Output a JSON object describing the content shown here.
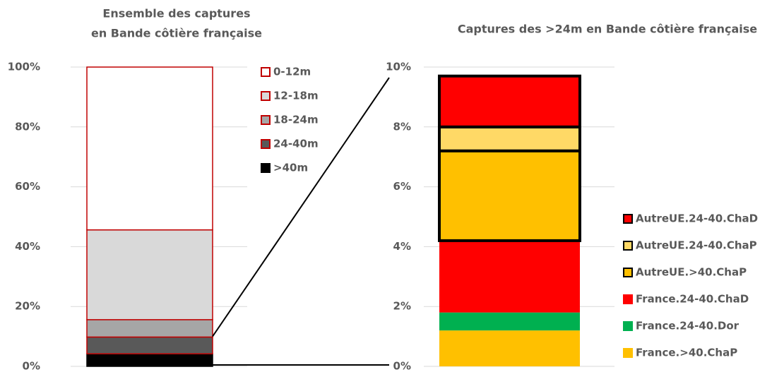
{
  "chart_data": [
    {
      "type": "stacked-bar",
      "title": [
        "Ensemble des captures",
        "en Bande côtière française"
      ],
      "series": [
        {
          "name": ">40m",
          "color": "#000000",
          "edgecolor": "#000000",
          "values": [
            4.2
          ]
        },
        {
          "name": "24-40m",
          "color": "#595959",
          "edgecolor": "#c00000",
          "values": [
            5.6
          ]
        },
        {
          "name": "18-24m",
          "color": "#a6a6a6",
          "edgecolor": "#c00000",
          "values": [
            5.8
          ]
        },
        {
          "name": "12-18m",
          "color": "#d9d9d9",
          "edgecolor": "#c00000",
          "values": [
            30
          ]
        },
        {
          "name": "0-12m",
          "color": "#ffffff",
          "edgecolor": "#c00000",
          "values": [
            54.4
          ]
        }
      ],
      "ylim": [
        0,
        100
      ],
      "yticks": [
        {
          "value": 0,
          "label": "0%"
        },
        {
          "value": 20,
          "label": "20%"
        },
        {
          "value": 40,
          "label": "40%"
        },
        {
          "value": 60,
          "label": "60%"
        },
        {
          "value": 80,
          "label": "80%"
        },
        {
          "value": 100,
          "label": "100%"
        }
      ],
      "grid": true
    },
    {
      "type": "stacked-bar",
      "title": [
        "Captures des >24m en Bande côtière française"
      ],
      "series": [
        {
          "name": "France.>40.ChaP",
          "color": "#ffc000",
          "edgecolor": "none",
          "values": [
            1.2
          ]
        },
        {
          "name": "France.24-40.Dor",
          "color": "#00b050",
          "edgecolor": "none",
          "values": [
            0.6
          ]
        },
        {
          "name": "France.24-40.ChaD",
          "color": "#ff0000",
          "edgecolor": "none",
          "values": [
            2.4
          ]
        },
        {
          "name": "AutreUE.>40.ChaP",
          "color": "#ffc000",
          "edgecolor": "#000000",
          "values": [
            3.0
          ]
        },
        {
          "name": "AutreUE.24-40.ChaP",
          "color": "#ffd966",
          "edgecolor": "#000000",
          "values": [
            0.8
          ]
        },
        {
          "name": "AutreUE.24-40.ChaD",
          "color": "#ff0000",
          "edgecolor": "#000000",
          "values": [
            1.7
          ]
        }
      ],
      "ylim": [
        0,
        10
      ],
      "yticks": [
        {
          "value": 0,
          "label": "0%"
        },
        {
          "value": 2,
          "label": "2%"
        },
        {
          "value": 4,
          "label": "4%"
        },
        {
          "value": 6,
          "label": "6%"
        },
        {
          "value": 8,
          "label": "8%"
        },
        {
          "value": 10,
          "label": "10%"
        }
      ],
      "grid": true
    }
  ]
}
